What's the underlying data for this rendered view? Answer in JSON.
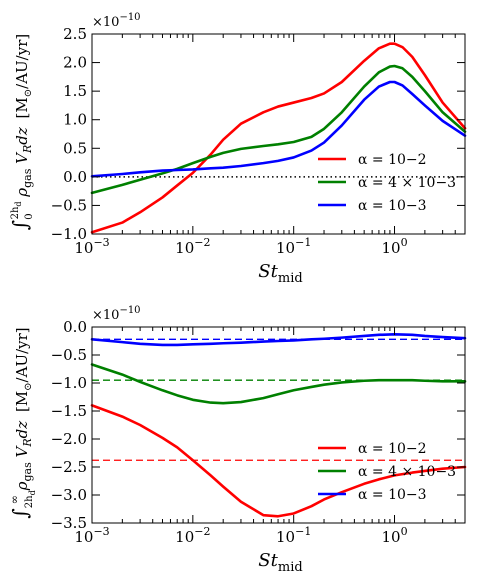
{
  "chart_data": [
    {
      "type": "line",
      "xscale": "log",
      "xlim": [
        0.001,
        5
      ],
      "ylim": [
        -1.0,
        2.5
      ],
      "y_multiplier": "×10−10",
      "xlabel": "St_mid",
      "ylabel": "∫₀^{2h_d} ρ_gas V_R dz  [M☉/AU/yr]",
      "xticks": [
        "10−3",
        "10−2",
        "10−1",
        "100"
      ],
      "yticks": [
        "−1.0",
        "−0.5",
        "0.0",
        "0.5",
        "1.0",
        "1.5",
        "2.0",
        "2.5"
      ],
      "legend_position": "lower-right",
      "series": [
        {
          "name": "α = 10−2",
          "color": "#ff0000",
          "x": [
            0.001,
            0.002,
            0.003,
            0.005,
            0.007,
            0.01,
            0.015,
            0.02,
            0.03,
            0.05,
            0.07,
            0.1,
            0.15,
            0.2,
            0.3,
            0.5,
            0.7,
            0.9,
            1.0,
            1.2,
            1.5,
            2.0,
            3.0,
            5.0
          ],
          "y": [
            -0.97,
            -0.8,
            -0.62,
            -0.36,
            -0.15,
            0.07,
            0.39,
            0.65,
            0.93,
            1.13,
            1.23,
            1.3,
            1.38,
            1.46,
            1.66,
            2.03,
            2.25,
            2.33,
            2.33,
            2.27,
            2.1,
            1.78,
            1.3,
            0.85
          ]
        },
        {
          "name": "α = 4 × 10−3",
          "color": "#008000",
          "x": [
            0.001,
            0.002,
            0.003,
            0.005,
            0.007,
            0.01,
            0.015,
            0.02,
            0.03,
            0.05,
            0.07,
            0.1,
            0.15,
            0.2,
            0.3,
            0.5,
            0.7,
            0.9,
            1.0,
            1.2,
            1.5,
            2.0,
            3.0,
            5.0
          ],
          "y": [
            -0.28,
            -0.14,
            -0.05,
            0.06,
            0.14,
            0.24,
            0.35,
            0.42,
            0.49,
            0.54,
            0.57,
            0.61,
            0.7,
            0.84,
            1.13,
            1.58,
            1.83,
            1.93,
            1.94,
            1.9,
            1.75,
            1.5,
            1.13,
            0.79
          ]
        },
        {
          "name": "α = 10−3",
          "color": "#0000ff",
          "x": [
            0.001,
            0.002,
            0.003,
            0.005,
            0.007,
            0.01,
            0.015,
            0.02,
            0.03,
            0.05,
            0.07,
            0.1,
            0.15,
            0.2,
            0.3,
            0.5,
            0.7,
            0.9,
            1.0,
            1.2,
            1.5,
            2.0,
            3.0,
            5.0
          ],
          "y": [
            0.01,
            0.05,
            0.08,
            0.11,
            0.12,
            0.13,
            0.15,
            0.16,
            0.19,
            0.24,
            0.28,
            0.34,
            0.46,
            0.6,
            0.9,
            1.35,
            1.58,
            1.66,
            1.66,
            1.6,
            1.45,
            1.25,
            0.98,
            0.72
          ]
        }
      ],
      "reference_lines": [
        {
          "y": 0.0,
          "color": "#000000",
          "style": "dotted"
        }
      ]
    },
    {
      "type": "line",
      "xscale": "log",
      "xlim": [
        0.001,
        5
      ],
      "ylim": [
        -3.5,
        0.0
      ],
      "y_multiplier": "×10−10",
      "xlabel": "St_mid",
      "ylabel": "∫_{2h_d}^∞ ρ_gas V_R dz  [M☉/AU/yr]",
      "xticks": [
        "10−3",
        "10−2",
        "10−1",
        "100"
      ],
      "yticks": [
        "−3.5",
        "−3.0",
        "−2.5",
        "−2.0",
        "−1.5",
        "−1.0",
        "−0.5",
        "0.0"
      ],
      "legend_position": "lower-right",
      "series": [
        {
          "name": "α = 10−2",
          "color": "#ff0000",
          "x": [
            0.001,
            0.002,
            0.003,
            0.005,
            0.007,
            0.01,
            0.015,
            0.02,
            0.03,
            0.05,
            0.07,
            0.1,
            0.15,
            0.2,
            0.3,
            0.5,
            0.7,
            1.0,
            1.5,
            2.0,
            3.0,
            5.0
          ],
          "y": [
            -1.4,
            -1.6,
            -1.75,
            -1.98,
            -2.15,
            -2.38,
            -2.65,
            -2.85,
            -3.12,
            -3.36,
            -3.38,
            -3.33,
            -3.2,
            -3.08,
            -2.95,
            -2.8,
            -2.72,
            -2.65,
            -2.6,
            -2.57,
            -2.53,
            -2.5
          ]
        },
        {
          "name": "α = 4 × 10−3",
          "color": "#008000",
          "x": [
            0.001,
            0.002,
            0.003,
            0.005,
            0.007,
            0.01,
            0.015,
            0.02,
            0.03,
            0.05,
            0.07,
            0.1,
            0.15,
            0.2,
            0.3,
            0.5,
            0.7,
            1.0,
            1.5,
            2.0,
            3.0,
            5.0
          ],
          "y": [
            -0.67,
            -0.85,
            -0.98,
            -1.13,
            -1.22,
            -1.3,
            -1.35,
            -1.36,
            -1.34,
            -1.27,
            -1.2,
            -1.13,
            -1.07,
            -1.03,
            -0.99,
            -0.96,
            -0.95,
            -0.95,
            -0.95,
            -0.96,
            -0.97,
            -0.97
          ]
        },
        {
          "name": "α = 10−3",
          "color": "#0000ff",
          "x": [
            0.001,
            0.002,
            0.003,
            0.005,
            0.007,
            0.01,
            0.015,
            0.02,
            0.03,
            0.05,
            0.07,
            0.1,
            0.15,
            0.2,
            0.3,
            0.5,
            0.7,
            1.0,
            1.5,
            2.0,
            3.0,
            5.0
          ],
          "y": [
            -0.22,
            -0.27,
            -0.3,
            -0.32,
            -0.32,
            -0.31,
            -0.3,
            -0.29,
            -0.28,
            -0.26,
            -0.25,
            -0.24,
            -0.22,
            -0.21,
            -0.19,
            -0.16,
            -0.14,
            -0.13,
            -0.14,
            -0.16,
            -0.18,
            -0.2
          ]
        }
      ],
      "reference_lines": [
        {
          "y": -2.38,
          "color": "#ff0000",
          "style": "dashed"
        },
        {
          "y": -0.95,
          "color": "#008000",
          "style": "dashed"
        },
        {
          "y": -0.22,
          "color": "#0000ff",
          "style": "dashed"
        }
      ]
    }
  ]
}
